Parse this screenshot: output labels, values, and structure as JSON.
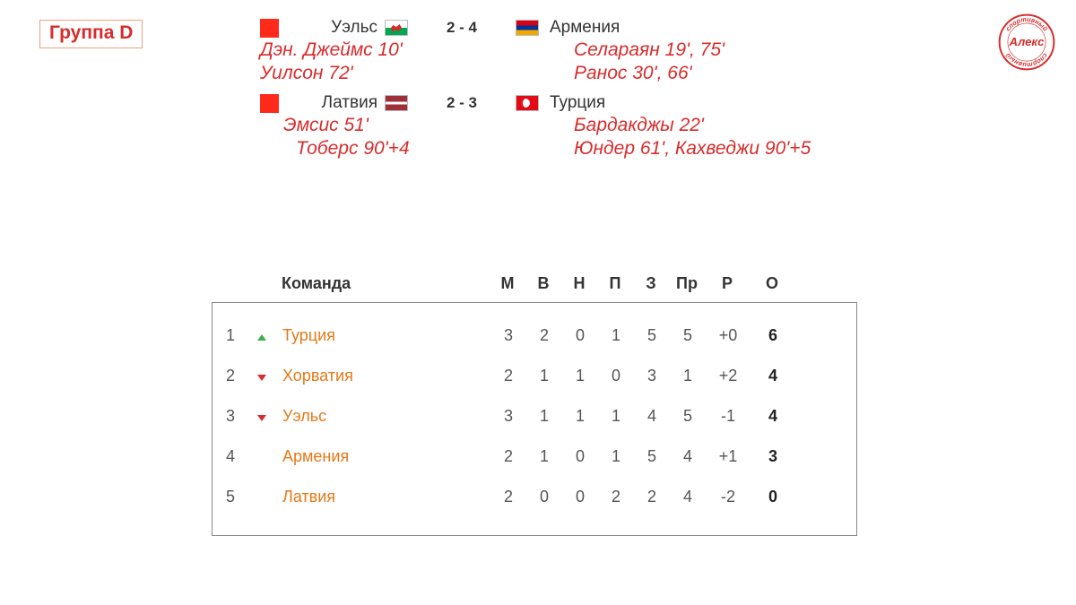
{
  "group_title": "Группа D",
  "colors": {
    "background": "#ffffff",
    "accent_red": "#d82c2c",
    "team_orange": "#e67817",
    "body_text": "#555555",
    "header_text": "#333333",
    "table_border": "#888888",
    "title_border": "#f0a080",
    "trend_up": "#3fae4b",
    "trend_down": "#d82c2c",
    "red_box": "#ff2a1a"
  },
  "typography": {
    "font_family": "Arial",
    "title_fontsize": 21,
    "match_fontsize": 19,
    "scorer_fontsize": 21,
    "table_fontsize": 18
  },
  "logo": {
    "top_text": "спортивный",
    "middle_text": "Алекс",
    "bottom_text": "спортивный",
    "color": "#d82c2c"
  },
  "matches": [
    {
      "home": {
        "name": "Уэльс",
        "flag": "wales"
      },
      "away": {
        "name": "Армения",
        "flag": "armenia"
      },
      "score": "2 - 4",
      "scorers_home": [
        "Дэн. Джеймс 10'",
        "Уилсон 72'"
      ],
      "scorers_away": [
        "Селараян 19', 75'",
        "Ранос 30', 66'"
      ]
    },
    {
      "home": {
        "name": "Латвия",
        "flag": "latvia"
      },
      "away": {
        "name": "Турция",
        "flag": "turkey"
      },
      "score": "2 - 3",
      "scorers_home": [
        "Эмсис 51'",
        "Тоберс 90'+4"
      ],
      "scorers_away": [
        "Бардакджы 22'",
        "Юндер 61',  Кахведжи 90'+5"
      ]
    }
  ],
  "standings": {
    "headers": {
      "team": "Команда",
      "m": "М",
      "v": "В",
      "n": "Н",
      "p": "П",
      "z": "З",
      "pr": "Пр",
      "r": "Р",
      "o": "О"
    },
    "rows": [
      {
        "rank": "1",
        "trend": "up",
        "team": "Турция",
        "m": "3",
        "v": "2",
        "n": "0",
        "p": "1",
        "z": "5",
        "pr": "5",
        "r": "+0",
        "o": "6"
      },
      {
        "rank": "2",
        "trend": "down",
        "team": "Хорватия",
        "m": "2",
        "v": "1",
        "n": "1",
        "p": "0",
        "z": "3",
        "pr": "1",
        "r": "+2",
        "o": "4"
      },
      {
        "rank": "3",
        "trend": "down",
        "team": "Уэльс",
        "m": "3",
        "v": "1",
        "n": "1",
        "p": "1",
        "z": "4",
        "pr": "5",
        "r": "-1",
        "o": "4"
      },
      {
        "rank": "4",
        "trend": "",
        "team": "Армения",
        "m": "2",
        "v": "1",
        "n": "0",
        "p": "1",
        "z": "5",
        "pr": "4",
        "r": "+1",
        "o": "3"
      },
      {
        "rank": "5",
        "trend": "",
        "team": "Латвия",
        "m": "2",
        "v": "0",
        "n": "0",
        "p": "2",
        "z": "2",
        "pr": "4",
        "r": "-2",
        "o": "0"
      }
    ]
  }
}
